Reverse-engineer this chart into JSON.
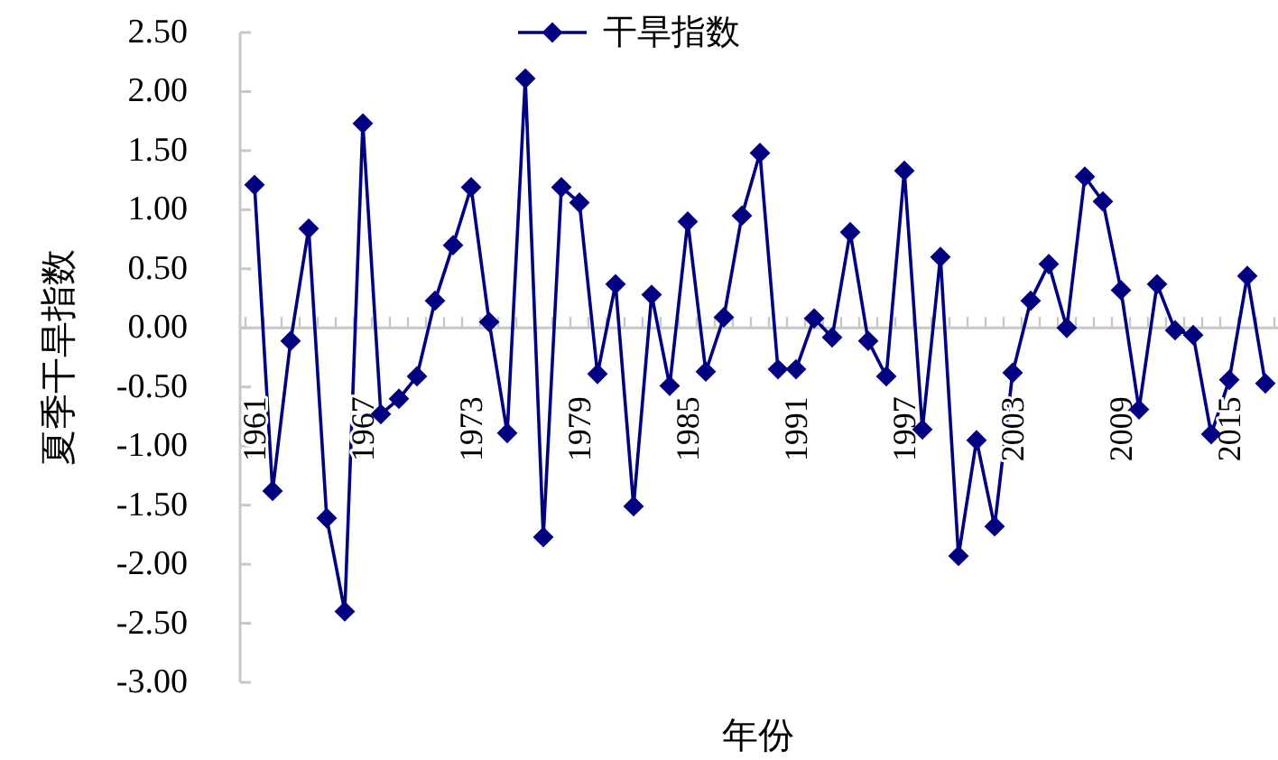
{
  "chart_data": {
    "type": "line",
    "xlabel": "年份",
    "ylabel": "夏季干旱指数",
    "categories": [
      "1961",
      null,
      null,
      null,
      null,
      null,
      "1967",
      null,
      null,
      null,
      null,
      null,
      "1973",
      null,
      null,
      null,
      null,
      null,
      "1979",
      null,
      null,
      null,
      null,
      null,
      "1985",
      null,
      null,
      null,
      null,
      null,
      "1991",
      null,
      null,
      null,
      null,
      null,
      "1997",
      null,
      null,
      null,
      null,
      null,
      "2003",
      null,
      null,
      null,
      null,
      null,
      "2009",
      null,
      null,
      null,
      null,
      null,
      "2015",
      null,
      null
    ],
    "series": [
      {
        "name": "干旱指数",
        "color": "#000080",
        "values": [
          1.21,
          -1.38,
          -0.11,
          0.84,
          -1.61,
          -2.4,
          1.73,
          -0.73,
          -0.6,
          -0.41,
          0.23,
          0.7,
          1.19,
          0.05,
          -0.89,
          2.11,
          -1.77,
          1.19,
          1.06,
          -0.39,
          0.37,
          -1.51,
          0.28,
          -0.49,
          0.9,
          -0.37,
          0.09,
          0.95,
          1.48,
          -0.35,
          -0.35,
          0.08,
          -0.08,
          0.81,
          -0.11,
          -0.41,
          1.33,
          -0.86,
          0.6,
          -1.93,
          -0.95,
          -1.68,
          -0.38,
          0.23,
          0.54,
          0.0,
          1.28,
          1.07,
          0.32,
          -0.69,
          0.37,
          -0.02,
          -0.06,
          -0.9,
          -0.44,
          0.44,
          -0.47
        ]
      }
    ],
    "ylim": [
      -3,
      2.5
    ],
    "yticks": [
      {
        "value": 2.5,
        "label": "2.50"
      },
      {
        "value": 2,
        "label": "2.00"
      },
      {
        "value": 1.5,
        "label": "1.50"
      },
      {
        "value": 1,
        "label": "1.00"
      },
      {
        "value": 0.5,
        "label": "0.50"
      },
      {
        "value": 0,
        "label": "0.00"
      },
      {
        "value": -0.5,
        "label": "-0.50"
      },
      {
        "value": -1,
        "label": "-1.00"
      },
      {
        "value": -1.5,
        "label": "-1.50"
      },
      {
        "value": -2,
        "label": "-2.00"
      },
      {
        "value": -2.5,
        "label": "-2.50"
      },
      {
        "value": -3,
        "label": "-3.00"
      }
    ],
    "marker": "diamond",
    "legend": "top"
  }
}
